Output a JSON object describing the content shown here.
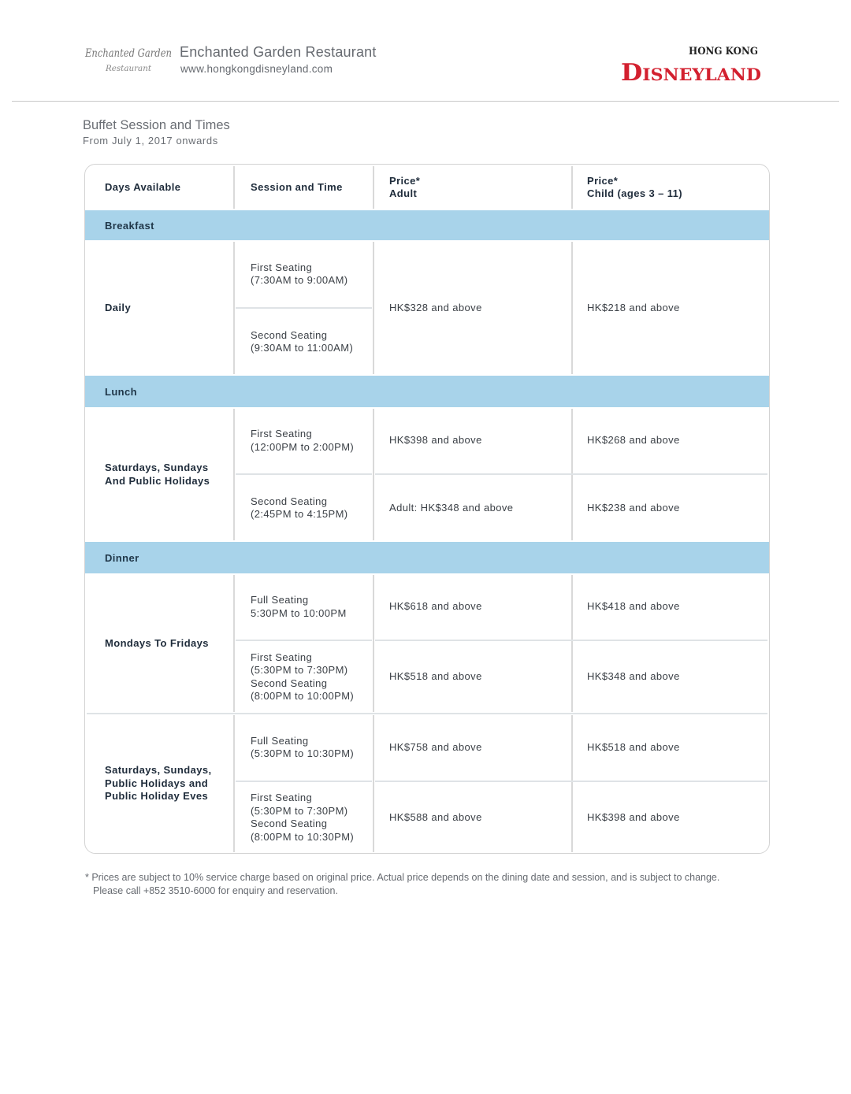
{
  "header": {
    "logo_text": "Enchanted Garden Restaurant",
    "restaurant_name": "Enchanted Garden Restaurant",
    "website": "www.hongkongdisneyland.com",
    "brand_logo_top": "HONG KONG",
    "brand_logo_main": "DISNEYLAND",
    "brand_color": "#d3202f"
  },
  "section": {
    "title": "Buffet Session and Times",
    "subtitle": "From July 1, 2017 onwards"
  },
  "table": {
    "columns": [
      "Days Available",
      "Session and Time",
      "Price*\nAdult",
      "Price*\nChild (ages 3 – 11)"
    ],
    "band_color": "#a8d3ea",
    "sections": [
      {
        "name": "Breakfast",
        "groups": [
          {
            "days": "Daily",
            "rows": [
              {
                "session": "First Seating\n(7:30AM to 9:00AM)"
              },
              {
                "session": "Second Seating\n(9:30AM to 11:00AM)"
              }
            ],
            "adult": "HK$328 and above",
            "child": "HK$218 and above"
          }
        ]
      },
      {
        "name": "Lunch",
        "groups": [
          {
            "days": "Saturdays, Sundays\nAnd Public Holidays",
            "rows": [
              {
                "session": "First Seating\n(12:00PM to 2:00PM)",
                "adult": "HK$398 and above",
                "child": "HK$268 and above"
              },
              {
                "session": "Second Seating\n(2:45PM to 4:15PM)",
                "adult": "Adult: HK$348 and above",
                "child": "HK$238 and above"
              }
            ]
          }
        ]
      },
      {
        "name": "Dinner",
        "groups": [
          {
            "days": "Mondays To Fridays",
            "rows": [
              {
                "session": "Full Seating\n5:30PM to 10:00PM",
                "adult": "HK$618 and above",
                "child": "HK$418 and above"
              },
              {
                "session": "First Seating\n(5:30PM to 7:30PM)\nSecond Seating\n(8:00PM to 10:00PM)",
                "adult": "HK$518 and above",
                "child": "HK$348 and above"
              }
            ]
          },
          {
            "days": "Saturdays, Sundays,\nPublic Holidays and\nPublic Holiday Eves",
            "rows": [
              {
                "session": "Full Seating\n(5:30PM to 10:30PM)",
                "adult": "HK$758 and above",
                "child": "HK$518 and above"
              },
              {
                "session": "First Seating\n(5:30PM to 7:30PM)\nSecond Seating\n(8:00PM to 10:30PM)",
                "adult": "HK$588 and above",
                "child": "HK$398 and above"
              }
            ]
          }
        ]
      }
    ]
  },
  "footnote": {
    "line1": "* Prices are subject to 10% service charge based on original price.  Actual price depends on the dining date and session, and is subject to change.",
    "line2": "Please call +852 3510-6000 for enquiry and reservation."
  }
}
